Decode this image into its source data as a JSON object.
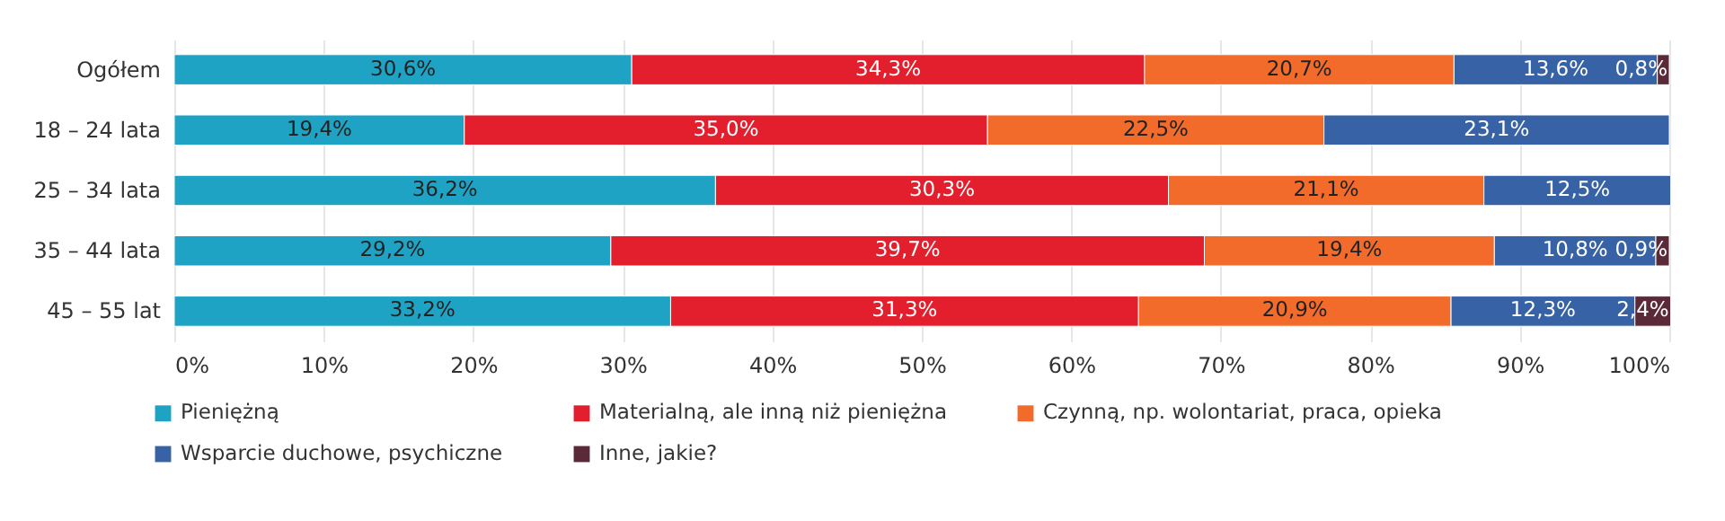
{
  "chart_data": {
    "type": "bar",
    "orientation": "horizontal",
    "stacked": true,
    "categories": [
      "Ogółem",
      "18 – 24 lata",
      "25 – 34 lata",
      "35 – 44 lata",
      "45 – 55 lat"
    ],
    "series": [
      {
        "name": "Pieniężną",
        "color": "#1fa3c4",
        "values": [
          30.6,
          19.4,
          36.2,
          29.2,
          33.2
        ],
        "value_labels": [
          "30,6%",
          "19,4%",
          "36,2%",
          "29,2%",
          "33,2%"
        ]
      },
      {
        "name": "Materialną, ale inną niż pieniężna",
        "color": "#e31e2d",
        "values": [
          34.3,
          35.0,
          30.3,
          39.7,
          31.3
        ],
        "value_labels": [
          "34,3%",
          "35,0%",
          "30,3%",
          "39,7%",
          "31,3%"
        ]
      },
      {
        "name": "Czynną, np. wolontariat, praca, opieka",
        "color": "#f26b2b",
        "values": [
          20.7,
          22.5,
          21.1,
          19.4,
          20.9
        ],
        "value_labels": [
          "20,7%",
          "22,5%",
          "21,1%",
          "19,4%",
          "20,9%"
        ]
      },
      {
        "name": "Wsparcie duchowe, psychiczne",
        "color": "#3762a5",
        "values": [
          13.6,
          23.1,
          12.5,
          10.8,
          12.3
        ],
        "value_labels": [
          "13,6%",
          "23,1%",
          "12,5%",
          "10,8%",
          "12,3%"
        ]
      },
      {
        "name": "Inne, jakie?",
        "color": "#5b2a38",
        "values": [
          0.8,
          null,
          null,
          0.9,
          2.4
        ],
        "value_labels": [
          "0,8%",
          null,
          null,
          "0,9%",
          "2,4%"
        ]
      }
    ],
    "xlim": [
      0,
      100
    ],
    "xticks": [
      {
        "value": 0,
        "label": "0%"
      },
      {
        "value": 10,
        "label": "10%"
      },
      {
        "value": 20,
        "label": "20%"
      },
      {
        "value": 30,
        "label": "30%"
      },
      {
        "value": 40,
        "label": "40%"
      },
      {
        "value": 50,
        "label": "50%"
      },
      {
        "value": 60,
        "label": "60%"
      },
      {
        "value": 70,
        "label": "70%"
      },
      {
        "value": 80,
        "label": "80%"
      },
      {
        "value": 90,
        "label": "90%"
      },
      {
        "value": 100,
        "label": "100%"
      }
    ],
    "grid": "x",
    "legend": "bottom left"
  }
}
